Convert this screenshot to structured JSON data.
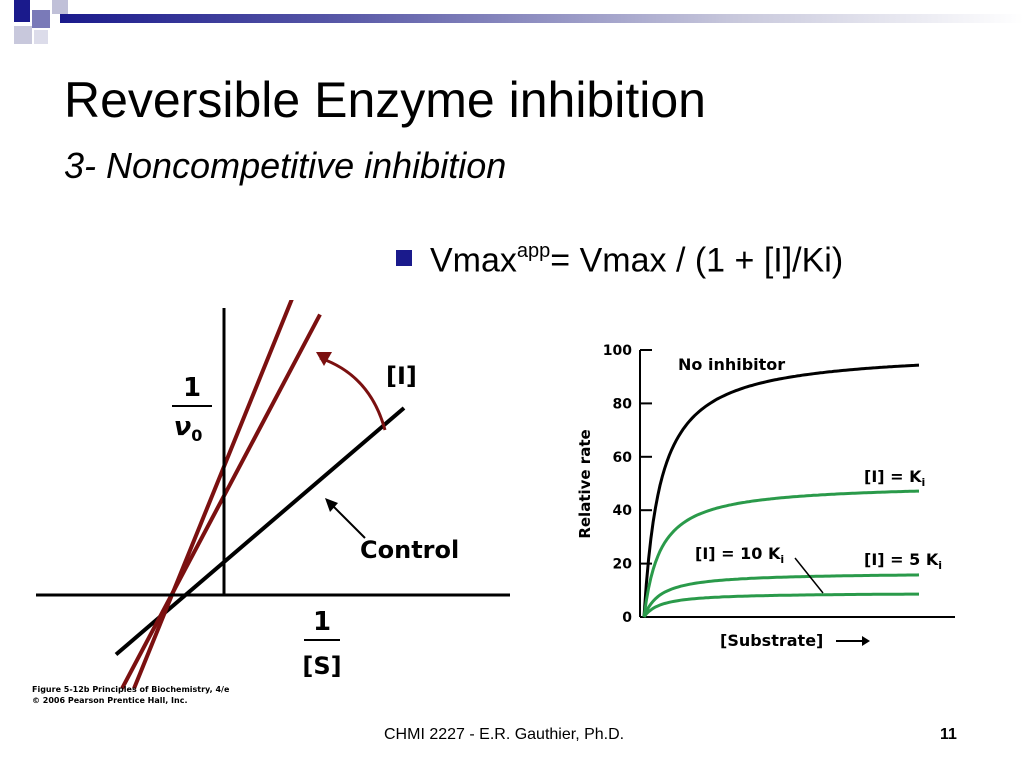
{
  "slide": {
    "title": "Reversible Enzyme inhibition",
    "subtitle": "3- Noncompetitive inhibition",
    "bullet": {
      "prefix": "Vmax",
      "sup": "app",
      "suffix": "= Vmax / (1 + [I]/Ki)"
    },
    "footer": "CHMI 2227 - E.R. Gauthier, Ph.D.",
    "page_number": "11"
  },
  "colors": {
    "accent": "#1a1a8c",
    "inhibited_line": "#7b1010",
    "control_line": "#000000",
    "curve_inhibited": "#2a9a4a",
    "curve_control": "#000000"
  },
  "chart_data": [
    {
      "type": "line",
      "title": "",
      "ylabel_num": "1",
      "ylabel_den": "ν",
      "ylabel_den_sub": "0",
      "xlabel_num": "1",
      "xlabel_den": "[S]",
      "inhibitor_label": "[I]",
      "control_label": "Control",
      "caption_line1": "Figure 5-12b  Principles of Biochemistry, 4/e",
      "caption_line2": "© 2006 Pearson Prentice Hall, Inc.",
      "series": [
        {
          "name": "Control",
          "x": [
            -0.9,
            1.5
          ],
          "y": [
            -0.35,
            1.1
          ]
        },
        {
          "name": "[I]",
          "x": [
            -0.85,
            0.8
          ],
          "y": [
            -0.55,
            1.65
          ]
        },
        {
          "name": "[I]",
          "x": [
            -0.75,
            0.6
          ],
          "y": [
            -0.55,
            1.8
          ]
        }
      ]
    },
    {
      "type": "line",
      "xlabel": "[Substrate]",
      "ylabel": "Relative rate",
      "ylim": [
        0,
        100
      ],
      "yticks": [
        "0",
        "20",
        "40",
        "60",
        "80",
        "100"
      ],
      "series": [
        {
          "name": "No inhibitor",
          "vmax": 100
        },
        {
          "name": "[I] = K",
          "name_sub": "i",
          "vmax": 50
        },
        {
          "name": "[I] = 5 K",
          "name_sub": "i",
          "vmax": 16.7
        },
        {
          "name": "[I] = 10 K",
          "name_sub": "i",
          "vmax": 9.1
        }
      ]
    }
  ]
}
